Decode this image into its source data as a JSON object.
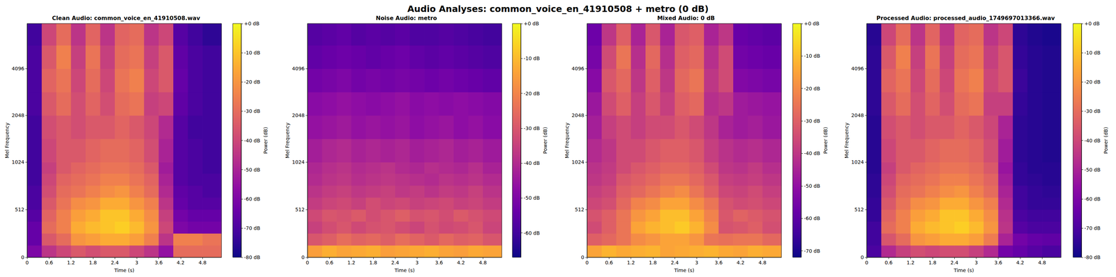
{
  "title": "Audio Analyses: common_voice_en_41910508 + metro (0 dB)",
  "chart_data": [
    {
      "type": "heatmap",
      "title": "Clean Audio: common_voice_en_41910508.wav",
      "x_label": "Time (s)",
      "y_label": "Mel Frequency",
      "xlim": [
        0,
        5.32
      ],
      "xticks": [
        0,
        0.6,
        1.2,
        1.8,
        2.4,
        3,
        3.6,
        4.2,
        4.8
      ],
      "ylim": [
        0,
        8000
      ],
      "yticks": [
        0,
        512,
        1024,
        2048,
        4096
      ],
      "time_bins": [
        0,
        0.4,
        0.8,
        1.2,
        1.6,
        2,
        2.4,
        2.8,
        3.2,
        3.6,
        4,
        4.4,
        4.8,
        5.32
      ],
      "freq_bins": [
        0,
        128,
        256,
        384,
        512,
        640,
        768,
        896,
        1024,
        1448,
        2048,
        2896,
        4096,
        5793,
        8000
      ],
      "power": [
        [
          -60,
          -45,
          -40,
          -35,
          -38,
          -35,
          -35,
          -40,
          -45,
          -55,
          -30,
          -30,
          -30
        ],
        [
          -65,
          -35,
          -30,
          -20,
          -18,
          -15,
          -15,
          -18,
          -25,
          -45,
          -25,
          -25,
          -28
        ],
        [
          -65,
          -30,
          -25,
          -15,
          -12,
          -10,
          -8,
          -12,
          -20,
          -40,
          -60,
          -62,
          -62
        ],
        [
          -68,
          -32,
          -25,
          -18,
          -15,
          -10,
          -10,
          -15,
          -22,
          -42,
          -62,
          -65,
          -65
        ],
        [
          -70,
          -35,
          -28,
          -22,
          -20,
          -15,
          -15,
          -20,
          -25,
          -45,
          -65,
          -68,
          -68
        ],
        [
          -70,
          -38,
          -30,
          -28,
          -25,
          -22,
          -20,
          -25,
          -30,
          -48,
          -66,
          -68,
          -70
        ],
        [
          -72,
          -40,
          -32,
          -30,
          -28,
          -25,
          -25,
          -28,
          -32,
          -50,
          -68,
          -70,
          -70
        ],
        [
          -72,
          -42,
          -35,
          -32,
          -30,
          -28,
          -28,
          -30,
          -35,
          -52,
          -68,
          -70,
          -72
        ],
        [
          -72,
          -40,
          -35,
          -35,
          -32,
          -30,
          -30,
          -32,
          -38,
          -50,
          -68,
          -70,
          -72
        ],
        [
          -72,
          -38,
          -35,
          -38,
          -35,
          -35,
          -32,
          -35,
          -40,
          -48,
          -68,
          -72,
          -72
        ],
        [
          -70,
          -35,
          -30,
          -38,
          -32,
          -38,
          -30,
          -28,
          -42,
          -40,
          -66,
          -70,
          -72
        ],
        [
          -70,
          -32,
          -28,
          -40,
          -30,
          -40,
          -28,
          -25,
          -40,
          -35,
          -65,
          -70,
          -72
        ],
        [
          -70,
          -35,
          -25,
          -42,
          -28,
          -42,
          -30,
          -28,
          -42,
          -35,
          -66,
          -70,
          -72
        ],
        [
          -72,
          -40,
          -30,
          -45,
          -32,
          -45,
          -32,
          -30,
          -45,
          -40,
          -68,
          -72,
          -75
        ]
      ],
      "colorbar": {
        "label": "Power (dB)",
        "range": [
          -80,
          0
        ],
        "ticks": [
          {
            "value": 0,
            "label": "+0 dB"
          },
          {
            "value": -10,
            "label": "-10 dB"
          },
          {
            "value": -20,
            "label": "-20 dB"
          },
          {
            "value": -30,
            "label": "-30 dB"
          },
          {
            "value": -40,
            "label": "-40 dB"
          },
          {
            "value": -50,
            "label": "-50 dB"
          },
          {
            "value": -60,
            "label": "-60 dB"
          },
          {
            "value": -70,
            "label": "-70 dB"
          },
          {
            "value": -80,
            "label": "-80 dB"
          }
        ]
      }
    },
    {
      "type": "heatmap",
      "title": "Noise Audio: metro",
      "x_label": "Time (s)",
      "y_label": "Mel Frequency",
      "xlim": [
        0,
        5.32
      ],
      "xticks": [
        0,
        0.6,
        1.2,
        1.8,
        2.4,
        3,
        3.6,
        4.2,
        4.8
      ],
      "ylim": [
        0,
        8000
      ],
      "yticks": [
        0,
        512,
        1024,
        2048,
        4096
      ],
      "time_bins": [
        0,
        0.4,
        0.8,
        1.2,
        1.6,
        2,
        2.4,
        2.8,
        3.2,
        3.6,
        4,
        4.4,
        4.8,
        5.32
      ],
      "freq_bins": [
        0,
        128,
        256,
        384,
        512,
        640,
        768,
        896,
        1024,
        1448,
        2048,
        2896,
        4096,
        5793,
        8000
      ],
      "power": [
        [
          -15,
          -12,
          -14,
          -13,
          -12,
          -15,
          -14,
          -13,
          -12,
          -14,
          -15,
          -13,
          -14
        ],
        [
          -30,
          -28,
          -25,
          -27,
          -26,
          -28,
          -25,
          -27,
          -29,
          -26,
          -28,
          -27,
          -30
        ],
        [
          -35,
          -32,
          -30,
          -33,
          -31,
          -30,
          -32,
          -34,
          -31,
          -33,
          -32,
          -30,
          -34
        ],
        [
          -33,
          -30,
          -31,
          -29,
          -32,
          -30,
          -28,
          -31,
          -30,
          -32,
          -29,
          -31,
          -33
        ],
        [
          -36,
          -34,
          -33,
          -35,
          -32,
          -34,
          -33,
          -35,
          -34,
          -33,
          -35,
          -34,
          -36
        ],
        [
          -38,
          -36,
          -35,
          -37,
          -36,
          -35,
          -37,
          -36,
          -38,
          -36,
          -37,
          -35,
          -38
        ],
        [
          -40,
          -38,
          -37,
          -39,
          -38,
          -37,
          -38,
          -39,
          -40,
          -38,
          -39,
          -38,
          -40
        ],
        [
          -41,
          -39,
          -38,
          -40,
          -39,
          -38,
          -40,
          -41,
          -39,
          -40,
          -41,
          -39,
          -42
        ],
        [
          -43,
          -41,
          -40,
          -42,
          -41,
          -42,
          -41,
          -43,
          -42,
          -41,
          -43,
          -42,
          -44
        ],
        [
          -46,
          -45,
          -44,
          -46,
          -45,
          -46,
          -45,
          -47,
          -46,
          -45,
          -47,
          -46,
          -48
        ],
        [
          -48,
          -47,
          -46,
          -47,
          -48,
          -47,
          -46,
          -48,
          -47,
          -48,
          -47,
          -48,
          -49
        ],
        [
          -52,
          -51,
          -50,
          -52,
          -51,
          -52,
          -51,
          -52,
          -53,
          -52,
          -53,
          -54,
          -55
        ],
        [
          -55,
          -54,
          -53,
          -54,
          -55,
          -54,
          -53,
          -55,
          -56,
          -55,
          -56,
          -57,
          -58
        ],
        [
          -57,
          -56,
          -55,
          -57,
          -56,
          -57,
          -56,
          -58,
          -58,
          -57,
          -58,
          -59,
          -60
        ]
      ],
      "colorbar": {
        "label": "Power (dB)",
        "range": [
          -67,
          0
        ],
        "ticks": [
          {
            "value": 0,
            "label": "+0 dB"
          },
          {
            "value": -10,
            "label": "-10 dB"
          },
          {
            "value": -20,
            "label": "-20 dB"
          },
          {
            "value": -30,
            "label": "-30 dB"
          },
          {
            "value": -40,
            "label": "-40 dB"
          },
          {
            "value": -50,
            "label": "-50 dB"
          },
          {
            "value": -60,
            "label": "-60 dB"
          }
        ]
      }
    },
    {
      "type": "heatmap",
      "title": "Mixed Audio: 0 dB",
      "x_label": "Time (s)",
      "y_label": "Mel Frequency",
      "xlim": [
        0,
        5.32
      ],
      "xticks": [
        0,
        0.6,
        1.2,
        1.8,
        2.4,
        3,
        3.6,
        4.2,
        4.8
      ],
      "ylim": [
        0,
        8000
      ],
      "yticks": [
        0,
        512,
        1024,
        2048,
        4096
      ],
      "time_bins": [
        0,
        0.4,
        0.8,
        1.2,
        1.6,
        2,
        2.4,
        2.8,
        3.2,
        3.6,
        4,
        4.4,
        4.8,
        5.32
      ],
      "freq_bins": [
        0,
        128,
        256,
        384,
        512,
        640,
        768,
        896,
        1024,
        1448,
        2048,
        2896,
        4096,
        5793,
        8000
      ],
      "power": [
        [
          -15,
          -12,
          -14,
          -13,
          -12,
          -15,
          -14,
          -13,
          -12,
          -14,
          -15,
          -13,
          -14
        ],
        [
          -30,
          -28,
          -25,
          -20,
          -18,
          -15,
          -15,
          -18,
          -25,
          -26,
          -25,
          -25,
          -28
        ],
        [
          -35,
          -30,
          -25,
          -15,
          -12,
          -10,
          -8,
          -12,
          -20,
          -33,
          -32,
          -30,
          -34
        ],
        [
          -33,
          -30,
          -25,
          -18,
          -15,
          -10,
          -10,
          -15,
          -22,
          -32,
          -29,
          -31,
          -33
        ],
        [
          -36,
          -34,
          -28,
          -22,
          -20,
          -15,
          -15,
          -20,
          -25,
          -33,
          -35,
          -34,
          -36
        ],
        [
          -38,
          -36,
          -30,
          -28,
          -25,
          -22,
          -20,
          -25,
          -30,
          -36,
          -37,
          -35,
          -38
        ],
        [
          -40,
          -38,
          -32,
          -30,
          -28,
          -25,
          -25,
          -28,
          -32,
          -38,
          -39,
          -38,
          -40
        ],
        [
          -41,
          -39,
          -35,
          -32,
          -30,
          -28,
          -28,
          -30,
          -35,
          -40,
          -41,
          -39,
          -42
        ],
        [
          -43,
          -40,
          -35,
          -35,
          -32,
          -30,
          -30,
          -32,
          -38,
          -41,
          -43,
          -42,
          -44
        ],
        [
          -46,
          -38,
          -35,
          -38,
          -35,
          -35,
          -32,
          -35,
          -40,
          -45,
          -47,
          -46,
          -48
        ],
        [
          -48,
          -35,
          -30,
          -38,
          -32,
          -38,
          -30,
          -28,
          -42,
          -40,
          -47,
          -48,
          -49
        ],
        [
          -52,
          -32,
          -28,
          -40,
          -30,
          -40,
          -28,
          -25,
          -40,
          -35,
          -53,
          -54,
          -55
        ],
        [
          -55,
          -35,
          -25,
          -42,
          -28,
          -42,
          -30,
          -28,
          -42,
          -35,
          -56,
          -57,
          -58
        ],
        [
          -57,
          -40,
          -30,
          -45,
          -32,
          -45,
          -32,
          -30,
          -45,
          -40,
          -58,
          -59,
          -60
        ]
      ],
      "colorbar": {
        "label": "Power (dB)",
        "range": [
          -72,
          0
        ],
        "ticks": [
          {
            "value": 0,
            "label": "+0 dB"
          },
          {
            "value": -10,
            "label": "-10 dB"
          },
          {
            "value": -20,
            "label": "-20 dB"
          },
          {
            "value": -30,
            "label": "-30 dB"
          },
          {
            "value": -40,
            "label": "-40 dB"
          },
          {
            "value": -50,
            "label": "-50 dB"
          },
          {
            "value": -60,
            "label": "-60 dB"
          },
          {
            "value": -70,
            "label": "-70 dB"
          }
        ]
      }
    },
    {
      "type": "heatmap",
      "title": "Processed Audio: processed_audio_1749697013366.wav",
      "x_label": "Time (s)",
      "y_label": "Mel Frequency",
      "xlim": [
        0,
        5.32
      ],
      "xticks": [
        0,
        0.6,
        1.2,
        1.8,
        2.4,
        3,
        3.6,
        4.2,
        4.8
      ],
      "ylim": [
        0,
        8000
      ],
      "yticks": [
        0,
        512,
        1024,
        2048,
        4096
      ],
      "time_bins": [
        0,
        0.4,
        0.8,
        1.2,
        1.6,
        2,
        2.4,
        2.8,
        3.2,
        3.6,
        4,
        4.4,
        4.8,
        5.32
      ],
      "freq_bins": [
        0,
        128,
        256,
        384,
        512,
        640,
        768,
        896,
        1024,
        1448,
        2048,
        2896,
        4096,
        5793,
        8000
      ],
      "power": [
        [
          -70,
          -48,
          -42,
          -38,
          -40,
          -38,
          -38,
          -42,
          -48,
          -62,
          -65,
          -68,
          -70
        ],
        [
          -72,
          -36,
          -30,
          -20,
          -18,
          -15,
          -15,
          -18,
          -26,
          -50,
          -62,
          -65,
          -66
        ],
        [
          -72,
          -30,
          -25,
          -15,
          -12,
          -10,
          -8,
          -12,
          -20,
          -45,
          -68,
          -70,
          -70
        ],
        [
          -74,
          -32,
          -25,
          -18,
          -15,
          -10,
          -10,
          -15,
          -22,
          -46,
          -70,
          -72,
          -72
        ],
        [
          -74,
          -35,
          -28,
          -22,
          -20,
          -15,
          -15,
          -20,
          -25,
          -48,
          -72,
          -74,
          -74
        ],
        [
          -75,
          -38,
          -30,
          -28,
          -25,
          -22,
          -20,
          -25,
          -30,
          -50,
          -72,
          -74,
          -75
        ],
        [
          -75,
          -40,
          -32,
          -30,
          -28,
          -25,
          -25,
          -28,
          -32,
          -52,
          -74,
          -75,
          -76
        ],
        [
          -76,
          -42,
          -35,
          -32,
          -30,
          -28,
          -28,
          -30,
          -35,
          -54,
          -74,
          -76,
          -76
        ],
        [
          -76,
          -40,
          -35,
          -35,
          -32,
          -30,
          -30,
          -32,
          -38,
          -52,
          -75,
          -76,
          -77
        ],
        [
          -76,
          -38,
          -35,
          -38,
          -35,
          -35,
          -32,
          -35,
          -40,
          -50,
          -75,
          -76,
          -77
        ],
        [
          -75,
          -35,
          -30,
          -38,
          -32,
          -38,
          -30,
          -28,
          -42,
          -42,
          -74,
          -76,
          -77
        ],
        [
          -75,
          -32,
          -28,
          -40,
          -30,
          -40,
          -28,
          -25,
          -40,
          -36,
          -73,
          -76,
          -77
        ],
        [
          -75,
          -35,
          -25,
          -42,
          -28,
          -42,
          -30,
          -28,
          -42,
          -36,
          -74,
          -76,
          -77
        ],
        [
          -76,
          -40,
          -30,
          -45,
          -32,
          -45,
          -32,
          -30,
          -45,
          -40,
          -75,
          -77,
          -78
        ]
      ],
      "colorbar": {
        "label": "Power (dB)",
        "range": [
          -80,
          0
        ],
        "ticks": [
          {
            "value": 0,
            "label": "+0 dB"
          },
          {
            "value": -10,
            "label": "-10 dB"
          },
          {
            "value": -20,
            "label": "-20 dB"
          },
          {
            "value": -30,
            "label": "-30 dB"
          },
          {
            "value": -40,
            "label": "-40 dB"
          },
          {
            "value": -50,
            "label": "-50 dB"
          },
          {
            "value": -60,
            "label": "-60 dB"
          },
          {
            "value": -70,
            "label": "-70 dB"
          },
          {
            "value": -80,
            "label": "-80 dB"
          }
        ]
      }
    }
  ]
}
